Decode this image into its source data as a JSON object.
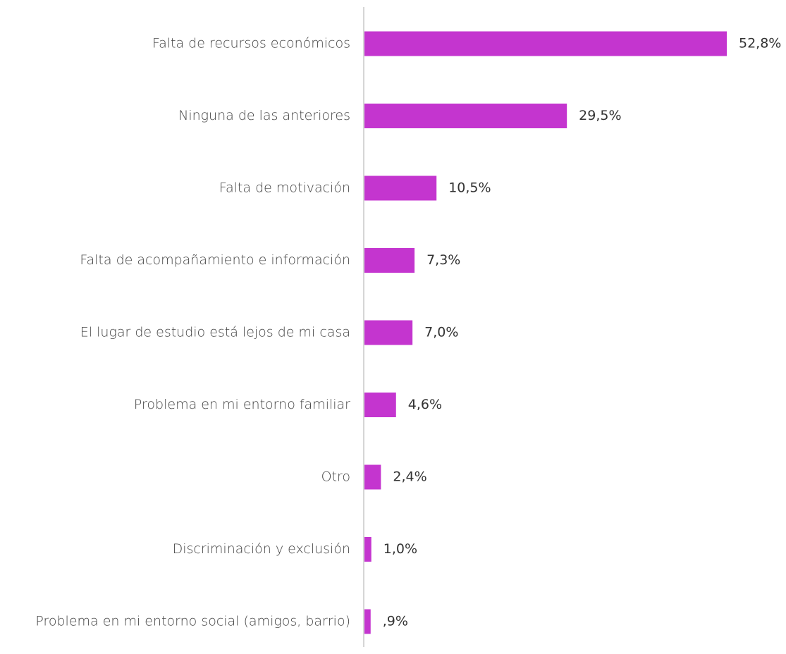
{
  "chart_data": {
    "type": "bar",
    "orientation": "horizontal",
    "title": "",
    "xlabel": "",
    "ylabel": "",
    "bar_color": "#C435CF",
    "axis_color": "#C8C8C8",
    "grid": false,
    "legend": "none",
    "xlim": [
      0,
      58
    ],
    "categories": [
      "Falta de recursos económicos",
      "Ninguna de las anteriores",
      "Falta de motivación",
      "Falta de acompañamiento e información",
      "El lugar de estudio está lejos de mi casa",
      "Problema en mi entorno familiar",
      "Otro",
      "Discriminación y exclusión",
      "Problema en mi entorno social (amigos, barrio)"
    ],
    "values": [
      52.8,
      29.5,
      10.5,
      7.3,
      7.0,
      4.6,
      2.4,
      1.0,
      0.9
    ],
    "value_labels": [
      "52,8%",
      "29,5%",
      "10,5%",
      "7,3%",
      "7,0%",
      "4,6%",
      "2,4%",
      "1,0%",
      ",9%"
    ]
  }
}
